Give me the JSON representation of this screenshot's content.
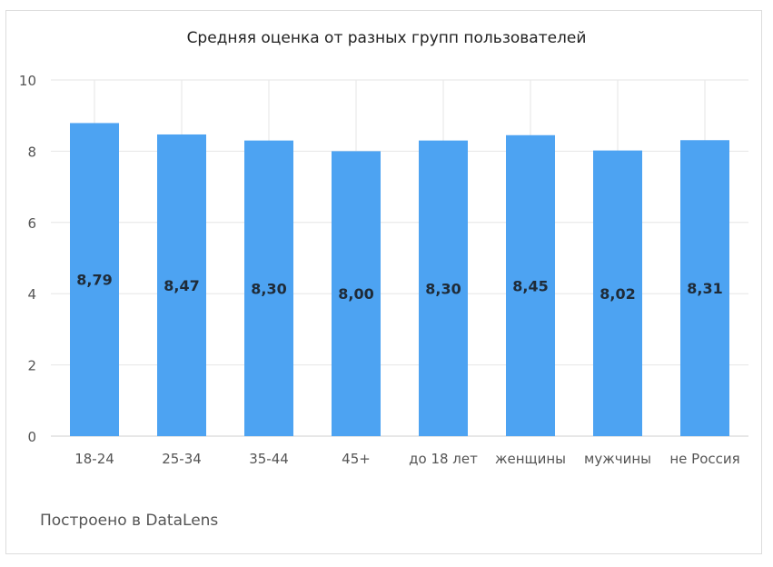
{
  "chart_data": {
    "type": "bar",
    "title": "Средняя оценка от разных групп пользователей",
    "categories": [
      "18-24",
      "25-34",
      "35-44",
      "45+",
      "до 18 лет",
      "женщины",
      "мужчины",
      "не Россия"
    ],
    "values": [
      8.79,
      8.47,
      8.3,
      8.0,
      8.3,
      8.45,
      8.02,
      8.31
    ],
    "data_labels": [
      "8,79",
      "8,47",
      "8,30",
      "8,00",
      "8,30",
      "8,45",
      "8,02",
      "8,31"
    ],
    "ylim": [
      0,
      10
    ],
    "yticks": [
      0,
      2,
      4,
      6,
      8,
      10
    ],
    "xlabel": "",
    "ylabel": "",
    "grid": true,
    "bar_color": "#4da3f2"
  },
  "footer": {
    "text": "Построено в DataLens"
  }
}
